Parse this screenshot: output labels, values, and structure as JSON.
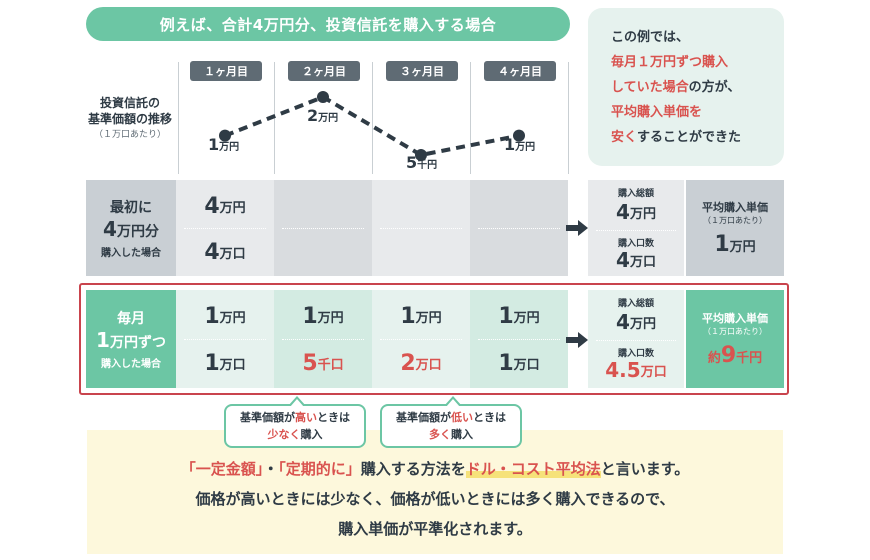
{
  "banner": {
    "title": "例えば、合計4万円分、投資信託を購入する場合"
  },
  "chart": {
    "caption_lines": [
      "投資信託の",
      "基準価額の推移"
    ],
    "caption_sub": "（１万口あたり）",
    "months": [
      "１ヶ月目",
      "２ヶ月目",
      "３ヶ月目",
      "４ヶ月目"
    ],
    "prices": [
      {
        "num": "1",
        "unit": "万円"
      },
      {
        "num": "2",
        "unit": "万円"
      },
      {
        "num": "5",
        "unit": "千円"
      },
      {
        "num": "1",
        "unit": "万円"
      }
    ],
    "price_yen": [
      10000,
      20000,
      5000,
      10000
    ],
    "line_color": "#2f3b45"
  },
  "info_box": {
    "line1": "この例では、",
    "line2": "毎月１万円ずつ購入",
    "line3_red": "していた場合",
    "line3_rest": "の方が、",
    "line4": "平均購入単価を",
    "line5_red": "安く",
    "line5_rest": "することができた"
  },
  "row_lump": {
    "head_line1": "最初に",
    "head_num": "4",
    "head_unit": "万円分",
    "head_line3": "購入した場合",
    "amount": {
      "num": "4",
      "unit": "万円"
    },
    "units": {
      "num": "4",
      "unit": "万口"
    },
    "total_amount_label": "購入総額",
    "total_amount": {
      "num": "4",
      "unit": "万円"
    },
    "total_units_label": "購入口数",
    "total_units": {
      "num": "4",
      "unit": "万口"
    },
    "avg_label": "平均購入単価",
    "avg_sub": "（１万口あたり）",
    "avg": {
      "num": "1",
      "unit": "万円"
    }
  },
  "row_monthly": {
    "head_line1": "毎月",
    "head_num": "1",
    "head_unit": "万円ずつ",
    "head_line3": "購入した場合",
    "amounts": [
      {
        "num": "1",
        "unit": "万円"
      },
      {
        "num": "1",
        "unit": "万円"
      },
      {
        "num": "1",
        "unit": "万円"
      },
      {
        "num": "1",
        "unit": "万円"
      }
    ],
    "units": [
      {
        "num": "1",
        "unit": "万口"
      },
      {
        "num": "5",
        "unit": "千口"
      },
      {
        "num": "2",
        "unit": "万口"
      },
      {
        "num": "1",
        "unit": "万口"
      }
    ],
    "total_amount_label": "購入総額",
    "total_amount": {
      "num": "4",
      "unit": "万円"
    },
    "total_units_label": "購入口数",
    "total_units": {
      "num": "4.5",
      "unit": "万口"
    },
    "avg_label": "平均購入単価",
    "avg_sub": "（１万口あたり）",
    "avg": {
      "prefix": "約",
      "num": "9",
      "unit": "千円"
    }
  },
  "callouts": [
    {
      "line1_a": "基準価額が",
      "line1_red": "高い",
      "line1_b": "ときは",
      "line2_red": "少なく",
      "line2_b": "購入"
    },
    {
      "line1_a": "基準価額が",
      "line1_red": "低い",
      "line1_b": "ときは",
      "line2_red": "多く",
      "line2_b": "購入"
    }
  ],
  "summary": {
    "q1": "「一定金額」",
    "dot": "・",
    "q2": "「定期的に」",
    "mid": "購入する方法を",
    "method": "ドル・コスト平均法",
    "end": "と言います。",
    "line2": "価格が高いときには少なく、価格が低いときには多く購入できるので、",
    "line3": "購入単価が平準化されます。"
  },
  "colors": {
    "accent_green": "#6cc6a4",
    "accent_red": "#d9534f",
    "frame_red": "#c9444d",
    "dark": "#2f3b45"
  }
}
